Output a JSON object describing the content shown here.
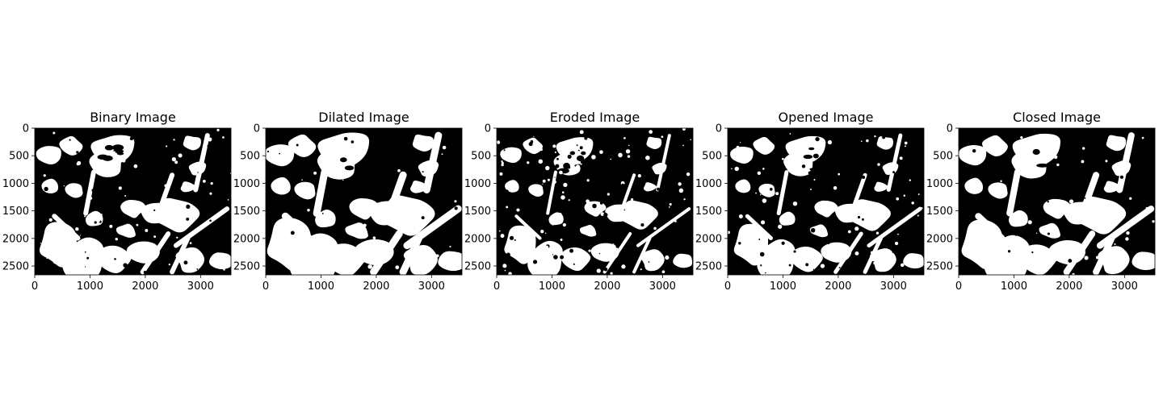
{
  "chart_data": [
    {
      "type": "heatmap",
      "title": "Binary Image",
      "colormap": "gray",
      "xlim": [
        0,
        3550
      ],
      "ylim": [
        2660,
        0
      ],
      "xticks": [
        0,
        1000,
        2000,
        3000
      ],
      "yticks": [
        0,
        500,
        1000,
        1500,
        2000,
        2500
      ],
      "xtick_labels": [
        "0",
        "1000",
        "2000",
        "3000"
      ],
      "ytick_labels": [
        "0",
        "500",
        "1000",
        "1500",
        "2000",
        "2500"
      ]
    },
    {
      "type": "heatmap",
      "title": "Dilated Image",
      "colormap": "gray",
      "xlim": [
        0,
        3550
      ],
      "ylim": [
        2660,
        0
      ],
      "xticks": [
        0,
        1000,
        2000,
        3000
      ],
      "yticks": [
        0,
        500,
        1000,
        1500,
        2000,
        2500
      ],
      "xtick_labels": [
        "0",
        "1000",
        "2000",
        "3000"
      ],
      "ytick_labels": [
        "0",
        "500",
        "1000",
        "1500",
        "2000",
        "2500"
      ]
    },
    {
      "type": "heatmap",
      "title": "Eroded Image",
      "colormap": "gray",
      "xlim": [
        0,
        3550
      ],
      "ylim": [
        2660,
        0
      ],
      "xticks": [
        0,
        1000,
        2000,
        3000
      ],
      "yticks": [
        0,
        500,
        1000,
        1500,
        2000,
        2500
      ],
      "xtick_labels": [
        "0",
        "1000",
        "2000",
        "3000"
      ],
      "ytick_labels": [
        "0",
        "500",
        "1000",
        "1500",
        "2000",
        "2500"
      ]
    },
    {
      "type": "heatmap",
      "title": "Opened Image",
      "colormap": "gray",
      "xlim": [
        0,
        3550
      ],
      "ylim": [
        2660,
        0
      ],
      "xticks": [
        0,
        1000,
        2000,
        3000
      ],
      "yticks": [
        0,
        500,
        1000,
        1500,
        2000,
        2500
      ],
      "xtick_labels": [
        "0",
        "1000",
        "2000",
        "3000"
      ],
      "ytick_labels": [
        "0",
        "500",
        "1000",
        "1500",
        "2000",
        "2500"
      ]
    },
    {
      "type": "heatmap",
      "title": "Closed Image",
      "colormap": "gray",
      "xlim": [
        0,
        3550
      ],
      "ylim": [
        2660,
        0
      ],
      "xticks": [
        0,
        1000,
        2000,
        3000
      ],
      "yticks": [
        0,
        500,
        1000,
        1500,
        2000,
        2500
      ],
      "xtick_labels": [
        "0",
        "1000",
        "2000",
        "3000"
      ],
      "ytick_labels": [
        "0",
        "500",
        "1000",
        "1500",
        "2000",
        "2500"
      ]
    }
  ]
}
